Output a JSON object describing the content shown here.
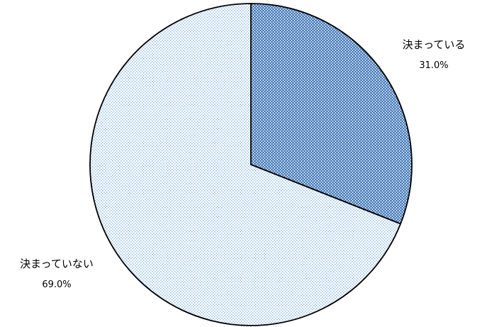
{
  "chart_data": {
    "type": "pie",
    "slices": [
      {
        "label": "決まっている",
        "value": 31.0,
        "value_label": "31.0%",
        "color": "#4f81bd",
        "pattern": "dense-dots"
      },
      {
        "label": "決まっていない",
        "value": 69.0,
        "value_label": "69.0%",
        "color": "#9dc3e6",
        "pattern": "sparse-dots"
      }
    ],
    "start_angle": "12-o'clock",
    "direction": "clockwise",
    "title": "",
    "legend": "none"
  }
}
